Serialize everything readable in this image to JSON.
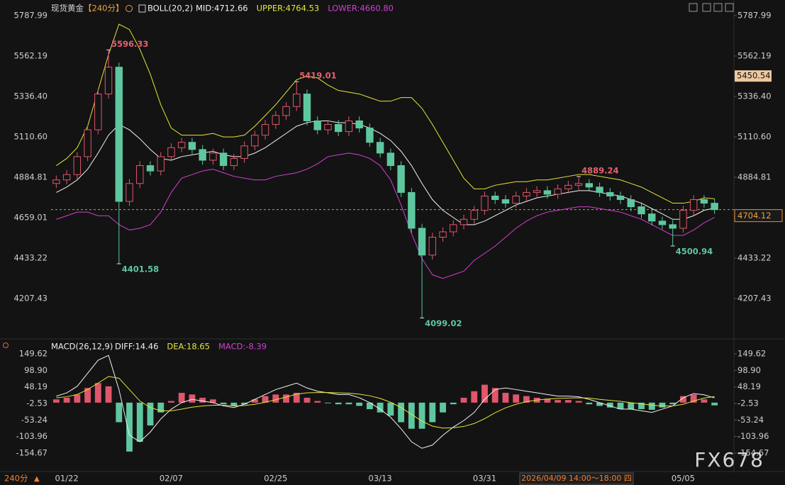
{
  "chart_data": {
    "type": "candlestick",
    "title": "现货黄金",
    "period": "【240分】",
    "timeframe_button": "240分",
    "crosshair_label": "2026/04/09 14:00～18:00 四",
    "watermark": "FX678",
    "categories": [
      null,
      "01/22",
      null,
      null,
      null,
      null,
      null,
      null,
      null,
      null,
      null,
      "02/07",
      null,
      null,
      null,
      null,
      null,
      null,
      null,
      null,
      null,
      "02/25",
      null,
      null,
      null,
      null,
      null,
      null,
      null,
      null,
      null,
      "03/13",
      null,
      null,
      null,
      null,
      null,
      null,
      null,
      null,
      null,
      "03/31",
      null,
      null,
      null,
      null,
      null,
      null,
      null,
      null,
      null,
      null,
      null,
      null,
      null,
      null,
      null,
      null,
      null,
      null,
      "05/05",
      null,
      null,
      null
    ],
    "open": [
      4850,
      4870,
      4900,
      5000,
      5150,
      5350,
      5500,
      4750,
      4850,
      4950,
      4920,
      5000,
      5050,
      5080,
      5040,
      4980,
      5020,
      4950,
      4990,
      5060,
      5120,
      5180,
      5230,
      5280,
      5350,
      5200,
      5150,
      5180,
      5140,
      5200,
      5160,
      5080,
      5020,
      4950,
      4800,
      4600,
      4450,
      4550,
      4580,
      4620,
      4650,
      4700,
      4780,
      4760,
      4740,
      4780,
      4800,
      4810,
      4790,
      4820,
      4840,
      4850,
      4830,
      4800,
      4780,
      4760,
      4720,
      4680,
      4640,
      4620,
      4600,
      4700,
      4760,
      4740
    ],
    "high": [
      4895,
      4925,
      5025,
      5175,
      5375,
      5596.33,
      5525,
      4875,
      4975,
      4975,
      5025,
      5075,
      5105,
      5105,
      5065,
      5045,
      5045,
      5015,
      5085,
      5145,
      5205,
      5255,
      5305,
      5419.01,
      5375,
      5225,
      5205,
      5205,
      5225,
      5225,
      5185,
      5105,
      5045,
      4975,
      4825,
      4625,
      4575,
      4605,
      4645,
      4675,
      4725,
      4805,
      4805,
      4785,
      4805,
      4825,
      4835,
      4835,
      4845,
      4865,
      4889.24,
      4875,
      4855,
      4825,
      4805,
      4785,
      4745,
      4705,
      4665,
      4645,
      4725,
      4785,
      4785,
      4765
    ],
    "low": [
      4825,
      4845,
      4875,
      4975,
      5125,
      5325,
      4401.58,
      4725,
      4825,
      4895,
      4895,
      4975,
      5025,
      5015,
      4955,
      4955,
      4925,
      4925,
      4965,
      5035,
      5095,
      5155,
      5205,
      5255,
      5175,
      5125,
      5125,
      5115,
      5115,
      5135,
      5055,
      4995,
      4925,
      4775,
      4575,
      4099.02,
      4425,
      4525,
      4555,
      4595,
      4625,
      4675,
      4735,
      4715,
      4715,
      4755,
      4775,
      4765,
      4765,
      4795,
      4815,
      4805,
      4775,
      4755,
      4735,
      4695,
      4655,
      4615,
      4595,
      4500.94,
      4575,
      4675,
      4715,
      4680
    ],
    "close": [
      4870,
      4900,
      5000,
      5150,
      5350,
      5500,
      4750,
      4850,
      4950,
      4920,
      5000,
      5050,
      5080,
      5040,
      4980,
      5020,
      4950,
      4990,
      5060,
      5120,
      5180,
      5230,
      5280,
      5350,
      5200,
      5150,
      5180,
      5140,
      5200,
      5160,
      5080,
      5020,
      4950,
      4800,
      4600,
      4450,
      4550,
      4580,
      4620,
      4650,
      4700,
      4780,
      4760,
      4740,
      4780,
      4800,
      4810,
      4790,
      4820,
      4840,
      4850,
      4830,
      4800,
      4780,
      4760,
      4720,
      4680,
      4640,
      4620,
      4600,
      4700,
      4760,
      4740,
      4704.12
    ],
    "up_color": "#e0566a",
    "down_color": "#5ec7a0",
    "annotations": [
      5596.33,
      4401.58,
      5419.01,
      4099.02,
      4889.24,
      4500.94
    ],
    "price_marker": 5450.54,
    "ylim": [
      3993.5,
      5843.5
    ],
    "yticks": [
      5787.99,
      5562.19,
      {
        "value": 5336.4,
        "label": "5336.40"
      },
      {
        "value": 5110.6,
        "label": "5110.60"
      },
      4884.81,
      4659.01,
      4433.22,
      4207.43
    ],
    "grid": false,
    "boll": {
      "name": "BOLL(20,2)",
      "series": [
        {
          "name": "MID:4712.66",
          "color": "#f2f2f2",
          "values": [
            4800,
            4830,
            4870,
            4930,
            5020,
            5120,
            5180,
            5150,
            5100,
            5040,
            4990,
            4980,
            5000,
            5010,
            5020,
            5030,
            5010,
            5000,
            5000,
            5020,
            5050,
            5090,
            5130,
            5170,
            5190,
            5200,
            5200,
            5190,
            5190,
            5180,
            5160,
            5130,
            5090,
            5030,
            4950,
            4850,
            4760,
            4700,
            4660,
            4620,
            4620,
            4640,
            4670,
            4700,
            4730,
            4750,
            4770,
            4780,
            4790,
            4800,
            4810,
            4810,
            4800,
            4790,
            4780,
            4760,
            4740,
            4710,
            4680,
            4650,
            4650,
            4670,
            4700,
            4712.66
          ]
        },
        {
          "name": "UPPER:4764.53",
          "color": "#e4e43c",
          "values": [
            4950,
            4990,
            5050,
            5170,
            5370,
            5570,
            5740,
            5710,
            5600,
            5460,
            5290,
            5160,
            5120,
            5120,
            5120,
            5130,
            5110,
            5110,
            5120,
            5170,
            5230,
            5290,
            5360,
            5430,
            5450,
            5440,
            5400,
            5370,
            5360,
            5350,
            5330,
            5310,
            5310,
            5330,
            5330,
            5270,
            5180,
            5080,
            4980,
            4880,
            4820,
            4820,
            4840,
            4850,
            4860,
            4860,
            4870,
            4870,
            4880,
            4890,
            4900,
            4900,
            4890,
            4880,
            4870,
            4850,
            4830,
            4800,
            4770,
            4740,
            4740,
            4750,
            4770,
            4764.53
          ]
        },
        {
          "name": "LOWER:4660.80",
          "color": "#d040d0",
          "values": [
            4650,
            4670,
            4690,
            4690,
            4670,
            4670,
            4620,
            4590,
            4600,
            4620,
            4690,
            4800,
            4880,
            4900,
            4920,
            4930,
            4910,
            4890,
            4880,
            4870,
            4870,
            4890,
            4900,
            4910,
            4930,
            4960,
            5000,
            5010,
            5020,
            5010,
            4990,
            4950,
            4870,
            4730,
            4570,
            4430,
            4340,
            4320,
            4340,
            4360,
            4420,
            4460,
            4500,
            4550,
            4600,
            4640,
            4670,
            4690,
            4700,
            4710,
            4720,
            4720,
            4710,
            4700,
            4690,
            4670,
            4650,
            4620,
            4590,
            4560,
            4560,
            4590,
            4630,
            4660.8
          ]
        }
      ]
    },
    "macd": {
      "name": "MACD(26,12,9)",
      "ylim": [
        -204.7,
        180.1
      ],
      "yticks": [
        149.62,
        {
          "value": 98.9,
          "label": "98.90"
        },
        48.19,
        -2.53,
        -53.24,
        -103.96,
        -154.67
      ],
      "diff": {
        "name": "DIFF:14.46",
        "color": "#f2f2f2",
        "values": [
          20,
          30,
          50,
          90,
          130,
          145,
          40,
          -100,
          -120,
          -90,
          -50,
          -20,
          0,
          10,
          5,
          0,
          -10,
          -15,
          -5,
          10,
          25,
          40,
          50,
          60,
          45,
          35,
          30,
          25,
          25,
          15,
          0,
          -20,
          -45,
          -80,
          -120,
          -140,
          -130,
          -100,
          -75,
          -55,
          -30,
          10,
          40,
          45,
          40,
          35,
          30,
          25,
          20,
          20,
          18,
          10,
          0,
          -10,
          -20,
          -20,
          -25,
          -30,
          -20,
          -10,
          15,
          28,
          24,
          14.46
        ]
      },
      "dea": {
        "name": "DEA:18.65",
        "color": "#e4e43c",
        "values": [
          15,
          18,
          25,
          40,
          60,
          80,
          75,
          40,
          5,
          -15,
          -25,
          -25,
          -20,
          -14,
          -10,
          -8,
          -8,
          -10,
          -9,
          -5,
          1,
          9,
          17,
          26,
          30,
          31,
          31,
          30,
          29,
          26,
          21,
          13,
          1,
          -15,
          -36,
          -57,
          -72,
          -78,
          -77,
          -73,
          -64,
          -49,
          -31,
          -16,
          -5,
          3,
          8,
          11,
          13,
          14,
          15,
          14,
          10,
          7,
          4,
          0,
          -4,
          -8,
          -10,
          -10,
          -5,
          5,
          14,
          18.65
        ]
      },
      "hist": {
        "name": "MACD:-8.39",
        "color": "#d040d0",
        "values": [
          10,
          15,
          25,
          45,
          60,
          50,
          -60,
          -150,
          -120,
          -70,
          -30,
          5,
          30,
          25,
          15,
          10,
          -5,
          -10,
          -5,
          10,
          20,
          25,
          25,
          30,
          15,
          5,
          -2,
          -5,
          -5,
          -10,
          -20,
          -30,
          -40,
          -60,
          -80,
          -80,
          -60,
          -30,
          -5,
          15,
          35,
          55,
          45,
          30,
          25,
          20,
          15,
          12,
          8,
          8,
          5,
          -5,
          -10,
          -15,
          -20,
          -20,
          -20,
          -22,
          -15,
          -5,
          20,
          25,
          10,
          -8.39
        ]
      }
    }
  }
}
